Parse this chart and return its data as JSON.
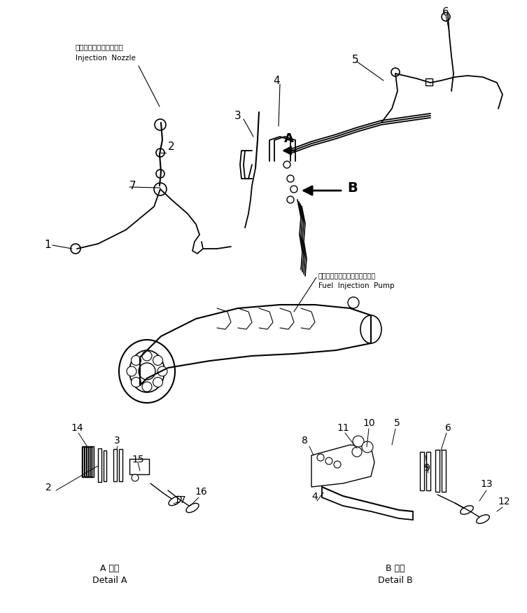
{
  "bg_color": "#ffffff",
  "fig_width": 7.53,
  "fig_height": 8.75,
  "dpi": 100,
  "labels": {
    "injection_nozzle_jp": "インジェクションノズル",
    "injection_nozzle_en": "Injection  Nozzle",
    "fuel_pump_jp": "フェルインジェクションポンプ",
    "fuel_pump_en": "Fuel  Injection  Pump",
    "detail_a_jp": "A 詳細",
    "detail_a_en": "Detail A",
    "detail_b_jp": "B 詳細",
    "detail_b_en": "Detail B"
  }
}
